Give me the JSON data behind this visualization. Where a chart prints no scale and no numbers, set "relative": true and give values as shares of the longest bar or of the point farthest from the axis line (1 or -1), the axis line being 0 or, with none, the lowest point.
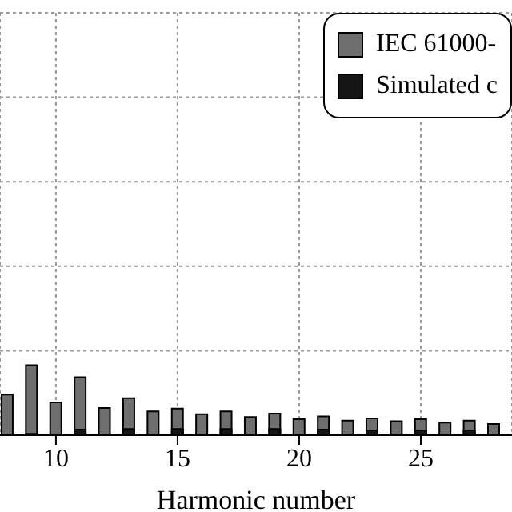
{
  "chart_data": {
    "type": "bar",
    "relative": true,
    "xlabel": "Harmonic number",
    "x": [
      8,
      9,
      10,
      11,
      12,
      13,
      14,
      15,
      16,
      17,
      18,
      19,
      20,
      21,
      22,
      23,
      24,
      25,
      26,
      27,
      28
    ],
    "xlim": [
      7.7,
      28.75
    ],
    "xticks": [
      10,
      15,
      20,
      25
    ],
    "grid": true,
    "legend": "top right",
    "series": [
      {
        "name": "IEC 61000-",
        "color": "#6e6e6e",
        "values": [
          0.58,
          1,
          0.47,
          0.83,
          0.39,
          0.53,
          0.34,
          0.38,
          0.3,
          0.34,
          0.26,
          0.31,
          0.23,
          0.27,
          0.21,
          0.24,
          0.2,
          0.23,
          0.18,
          0.21,
          0.16
        ]
      },
      {
        "name": "Simulated c",
        "color": "#151515",
        "values": [
          null,
          0.02,
          null,
          0.08,
          null,
          0.09,
          null,
          0.09,
          null,
          0.09,
          null,
          0.09,
          null,
          0.08,
          null,
          0.07,
          null,
          0.07,
          null,
          0.07,
          null
        ]
      }
    ]
  }
}
